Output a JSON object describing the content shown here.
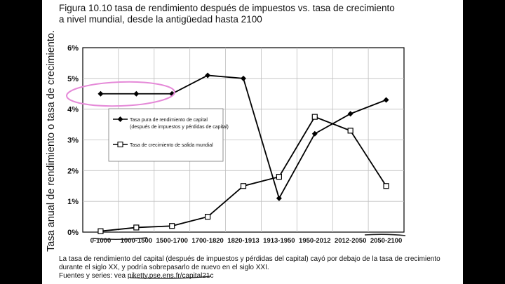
{
  "chart_data": {
    "type": "line",
    "title_line1": "Figura 10.10 tasa de rendimiento después de impuestos vs. tasa de crecimiento",
    "title_line2": "a nivel mundial, desde la antigüedad hasta 2100",
    "ylabel": "Tasa anual de rendimiento o tasa de crecimiento.",
    "categories": [
      "0-1000",
      "1000-1500",
      "1500-1700",
      "1700-1820",
      "1820-1913",
      "1913-1950",
      "1950-2012",
      "2012-2050",
      "2050-2100"
    ],
    "y_ticks": [
      "0%",
      "1%",
      "2%",
      "3%",
      "4%",
      "5%",
      "6%"
    ],
    "ylim": [
      0,
      6
    ],
    "grid": true,
    "legend_position": "upper-left-inside",
    "series": [
      {
        "name_line1": "Tasa pura de rendimiento de capital",
        "name_line2": "(después de impuestos y pérdidas de capital)",
        "marker": "filled-diamond",
        "values": [
          4.5,
          4.5,
          4.5,
          5.1,
          5.0,
          1.1,
          3.2,
          3.85,
          4.3
        ]
      },
      {
        "name": "Tasa de crecimiento de salida mundial",
        "marker": "open-square",
        "values": [
          0.03,
          0.15,
          0.2,
          0.5,
          1.5,
          1.8,
          3.75,
          3.3,
          1.5
        ]
      }
    ]
  },
  "footer": {
    "line1": "La tasa de rendimiento del capital (después de impuestos y pérdidas del capital) cayó por debajo de la tasa de crecimiento",
    "line2": "durante el siglo XX, y podría sobrepasarlo de nuevo en el siglo XXI.",
    "line3_prefix": "Fuentes y series: ",
    "line3_link": "vea piketty.pse.ens.fr/capital21c"
  },
  "colors": {
    "background": "#ffffff",
    "side_bars": "#000000",
    "lines": "#000000",
    "grid": "#bfbfbf",
    "annotation_ellipse": "#e58ad8",
    "annotation_underline": "#222222"
  }
}
